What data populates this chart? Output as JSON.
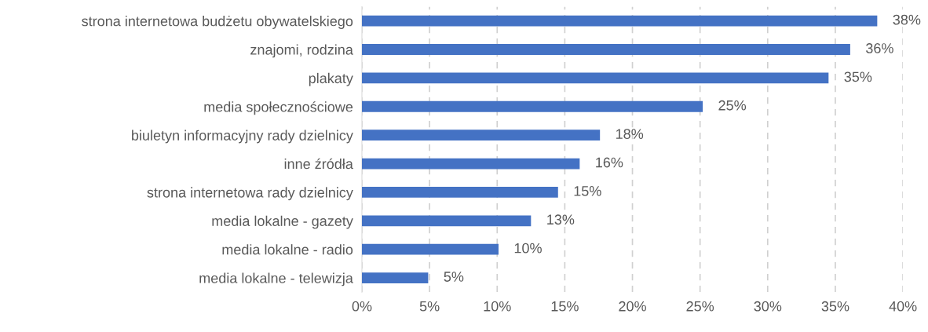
{
  "chart_data": {
    "type": "bar",
    "orientation": "horizontal",
    "categories": [
      "strona internetowa budżetu obywatelskiego",
      "znajomi, rodzina",
      "plakaty",
      "media społecznościowe",
      "biuletyn informacyjny rady dzielnicy",
      "inne źródła",
      "strona internetowa rady dzielnicy",
      "media lokalne - gazety",
      "media lokalne - radio",
      "media lokalne - telewizja"
    ],
    "values": [
      38.1,
      36.1,
      34.5,
      25.2,
      17.6,
      16.1,
      14.5,
      12.5,
      10.1,
      4.9
    ],
    "value_labels": [
      "38%",
      "36%",
      "35%",
      "25%",
      "18%",
      "16%",
      "15%",
      "13%",
      "10%",
      "5%"
    ],
    "color": "#4472c4",
    "xlim": [
      0,
      40
    ],
    "xticks": [
      {
        "value": 0,
        "label": "0%"
      },
      {
        "value": 5,
        "label": "5%"
      },
      {
        "value": 10,
        "label": "10%"
      },
      {
        "value": 15,
        "label": "15%"
      },
      {
        "value": 20,
        "label": "20%"
      },
      {
        "value": 25,
        "label": "25%"
      },
      {
        "value": 30,
        "label": "30%"
      },
      {
        "value": 35,
        "label": "35%"
      },
      {
        "value": 40,
        "label": "40%"
      }
    ],
    "grid": "x",
    "line_style": "dashed"
  }
}
